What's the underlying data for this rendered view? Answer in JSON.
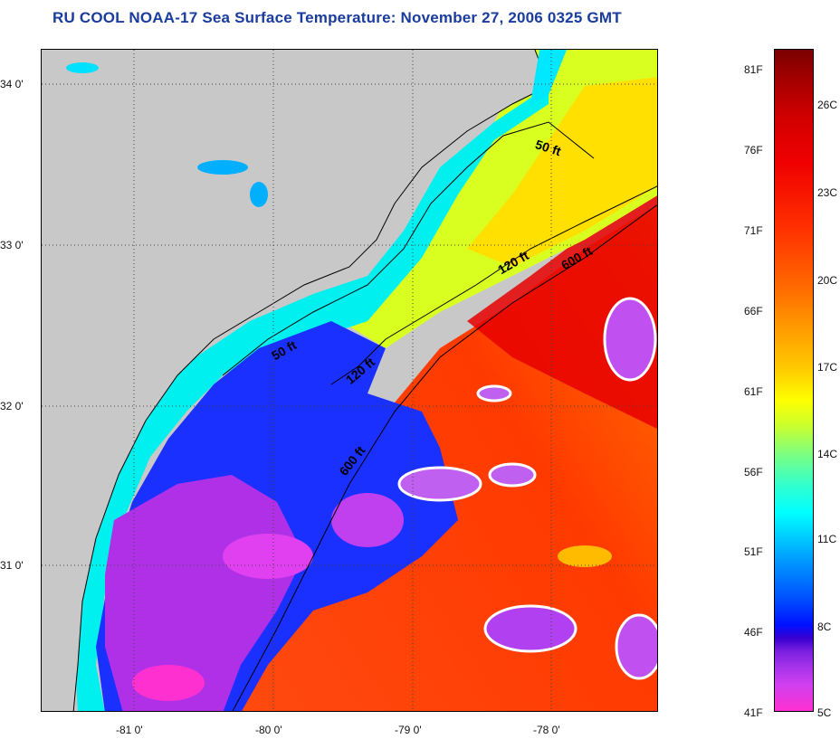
{
  "title": "RU COOL  NOAA-17  Sea Surface Temperature:  November 27, 2006 0325 GMT",
  "map": {
    "latitude_labels": [
      "34 0'",
      "33 0'",
      "32 0'",
      "31 0'"
    ],
    "longitude_labels": [
      "-81 0'",
      "-80 0'",
      "-79 0'",
      "-78 0'"
    ],
    "isobaths": {
      "fifty_north": "50 ft",
      "fifty_south": "50 ft",
      "onetwenty_north": "120 ft",
      "onetwenty_south": "120 ft",
      "sixhundred_north": "600 ft",
      "sixhundred_south": "600 ft"
    },
    "land_color": "#c8c8c8"
  },
  "colorbar": {
    "fahrenheit": [
      "81F",
      "76F",
      "71F",
      "66F",
      "61F",
      "56F",
      "51F",
      "46F",
      "41F"
    ],
    "celsius": [
      "26C",
      "23C",
      "20C",
      "17C",
      "14C",
      "11C",
      "8C",
      "5C"
    ]
  }
}
